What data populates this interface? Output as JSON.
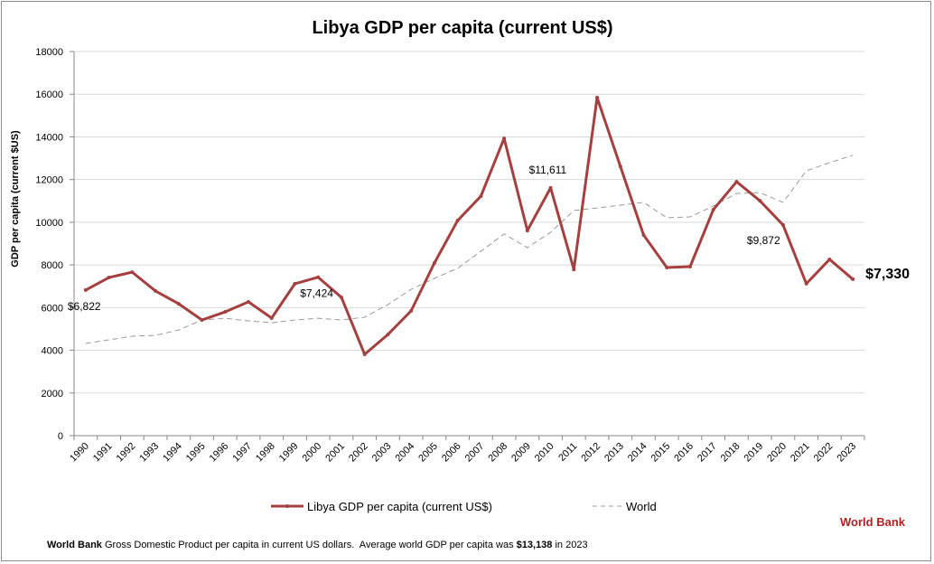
{
  "chart_data": {
    "type": "line",
    "title": "Libya GDP per capita (current US$)",
    "ylabel": "GDP per capita (current $US)",
    "xlabel": "",
    "ylim": [
      0,
      18000
    ],
    "yticks": [
      0,
      2000,
      4000,
      6000,
      8000,
      10000,
      12000,
      14000,
      16000,
      18000
    ],
    "grid": true,
    "legend_placement": "bottom",
    "categories": [
      "1990",
      "1991",
      "1992",
      "1993",
      "1994",
      "1995",
      "1996",
      "1997",
      "1998",
      "1999",
      "2000",
      "2001",
      "2002",
      "2003",
      "2004",
      "2005",
      "2006",
      "2007",
      "2008",
      "2009",
      "2010",
      "2011",
      "2012",
      "2013",
      "2014",
      "2015",
      "2016",
      "2017",
      "2018",
      "2019",
      "2020",
      "2021",
      "2022",
      "2023"
    ],
    "series": [
      {
        "name": "Libya GDP per capita (current US$)",
        "color": "#a5403f",
        "style": "solid-markers",
        "values": [
          6822,
          7410,
          7660,
          6780,
          6180,
          5420,
          5800,
          6270,
          5510,
          7120,
          7424,
          6480,
          3810,
          4740,
          5850,
          8090,
          10080,
          11220,
          13930,
          9610,
          11611,
          7790,
          15840,
          12620,
          9400,
          7880,
          7920,
          10590,
          11900,
          11010,
          9872,
          7120,
          8260,
          7330
        ]
      },
      {
        "name": "World",
        "color": "#999999",
        "style": "dashed",
        "values": [
          4320,
          4490,
          4660,
          4700,
          4950,
          5420,
          5500,
          5380,
          5290,
          5420,
          5500,
          5420,
          5550,
          6140,
          6860,
          7370,
          7840,
          8640,
          9450,
          8810,
          9530,
          10550,
          10670,
          10800,
          10930,
          10210,
          10250,
          10760,
          11350,
          11390,
          10930,
          12410,
          12790,
          13138
        ]
      }
    ],
    "annotations": [
      {
        "year": "1990",
        "text": "$6,822"
      },
      {
        "year": "2000",
        "text": "$7,424"
      },
      {
        "year": "2010",
        "text": "$11,611"
      },
      {
        "year": "2020",
        "text": "$9,872"
      },
      {
        "year": "2023",
        "text": "$7,330"
      }
    ]
  },
  "source_label": "World Bank",
  "footer": {
    "bold_lead": "World Bank",
    "text": " Gross Domestic Product per capita in current US dollars.  Average world GDP per capita was ",
    "bold_value": "$13,138",
    "tail": " in 2023"
  }
}
